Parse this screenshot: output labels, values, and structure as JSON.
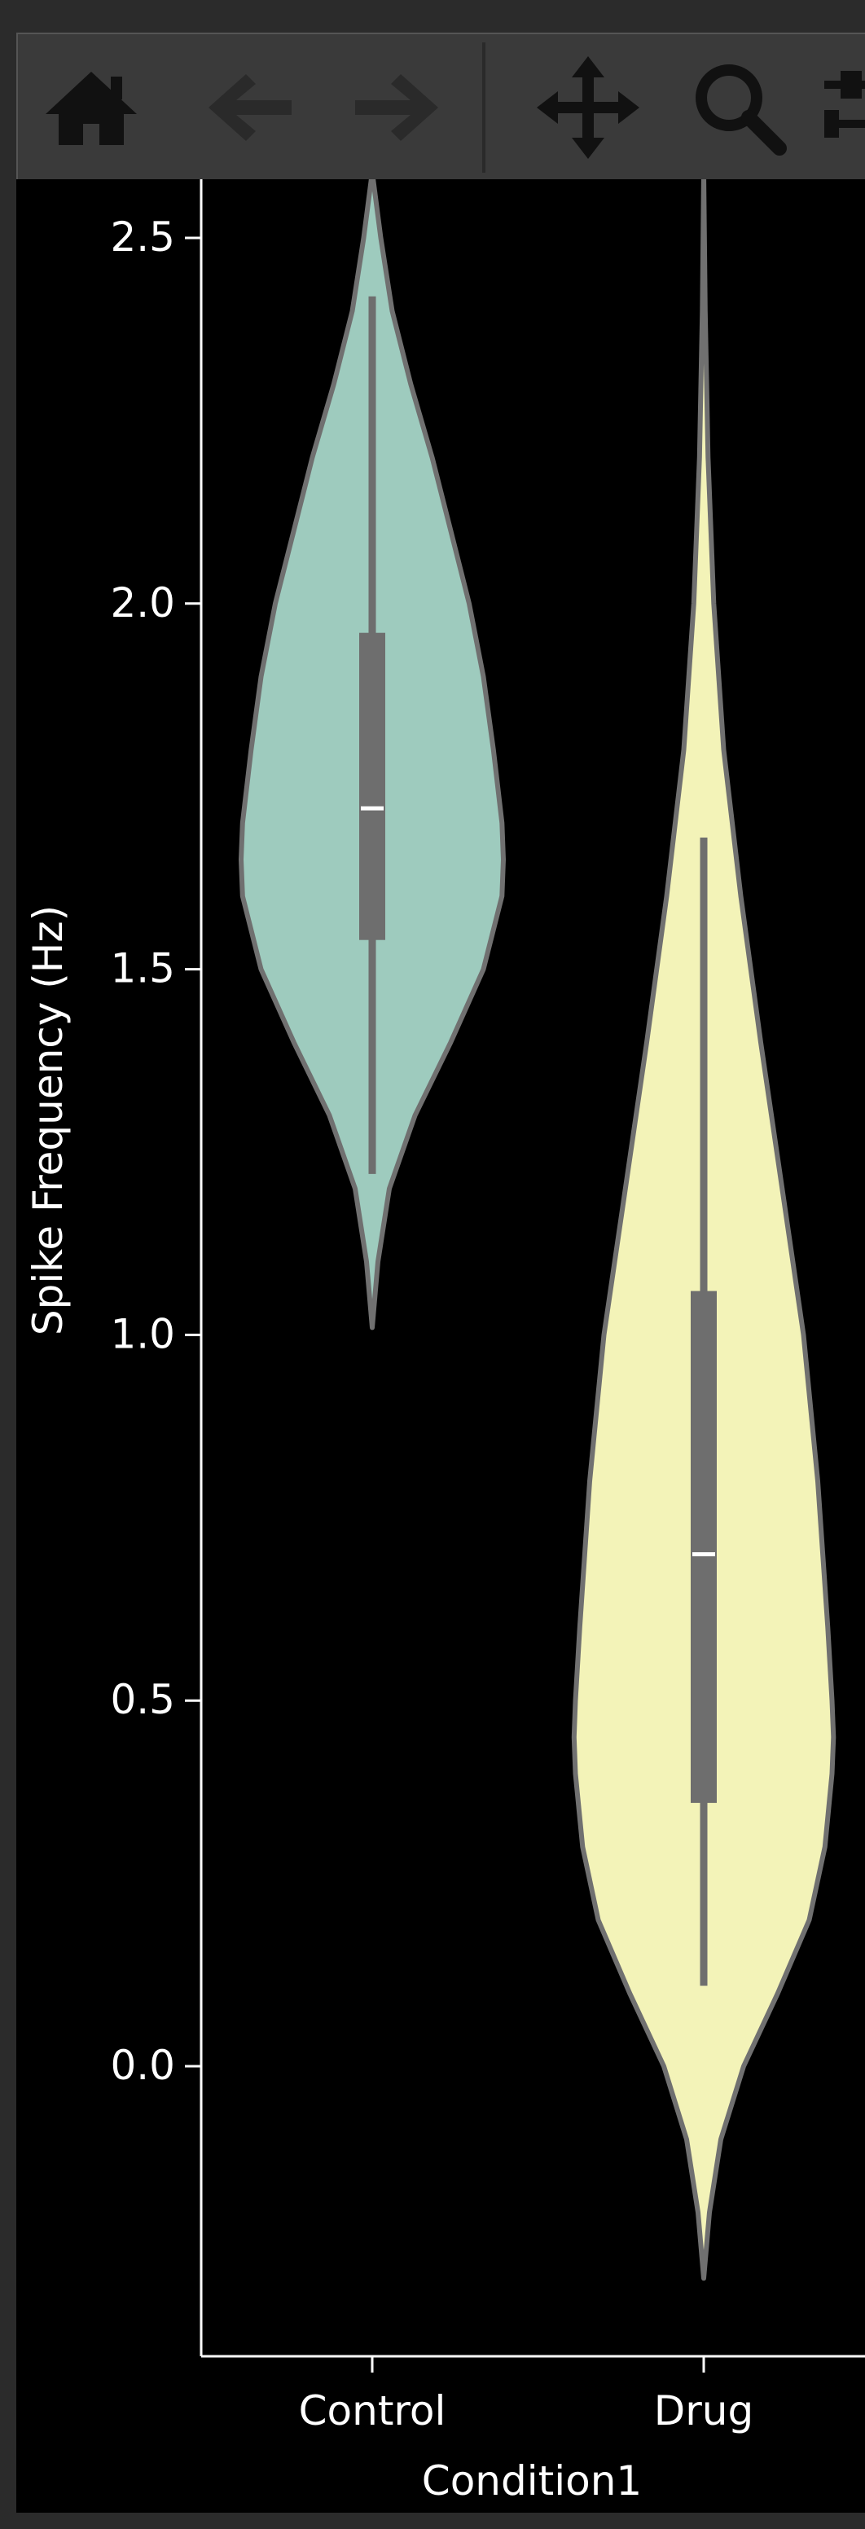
{
  "toolbar": {
    "buttons": [
      {
        "name": "home-icon",
        "label": "Home"
      },
      {
        "name": "back-arrow-icon",
        "label": "Back"
      },
      {
        "name": "forward-arrow-icon",
        "label": "Forward"
      },
      {
        "name": "pan-icon",
        "label": "Pan"
      },
      {
        "name": "zoom-icon",
        "label": "Zoom"
      },
      {
        "name": "configure-subplots-icon",
        "label": "Subplots"
      }
    ]
  },
  "chart_data": {
    "type": "violin",
    "title": "",
    "xlabel": "Condition1",
    "ylabel": "Spike Frequency (Hz)",
    "ylim": [
      -0.43,
      2.58
    ],
    "yticks": [
      0.0,
      0.5,
      1.0,
      1.5,
      2.0,
      2.5
    ],
    "ytick_labels": [
      "0.0",
      "0.5",
      "1.0",
      "1.5",
      "2.0",
      "2.5"
    ],
    "categories": [
      "Control",
      "Drug"
    ],
    "colors": {
      "Control": "#9ecbbe",
      "Drug": "#f3f3b8",
      "outline": "#707070",
      "box": "#6e6e6e",
      "median": "#ffffff"
    },
    "violins": [
      {
        "category": "Control",
        "min": 1.01,
        "max": 2.59,
        "whisker_low": 1.22,
        "whisker_high": 2.42,
        "q1": 1.54,
        "median": 1.72,
        "q3": 1.96,
        "density": [
          [
            1.01,
            0.0
          ],
          [
            1.1,
            0.04
          ],
          [
            1.2,
            0.12
          ],
          [
            1.3,
            0.3
          ],
          [
            1.4,
            0.55
          ],
          [
            1.5,
            0.78
          ],
          [
            1.6,
            0.91
          ],
          [
            1.65,
            0.92
          ],
          [
            1.7,
            0.91
          ],
          [
            1.8,
            0.85
          ],
          [
            1.9,
            0.78
          ],
          [
            2.0,
            0.68
          ],
          [
            2.1,
            0.55
          ],
          [
            2.2,
            0.42
          ],
          [
            2.3,
            0.27
          ],
          [
            2.4,
            0.14
          ],
          [
            2.5,
            0.06
          ],
          [
            2.59,
            0.0
          ]
        ]
      },
      {
        "category": "Drug",
        "min": -0.29,
        "max": 2.59,
        "whisker_low": 0.11,
        "whisker_high": 1.68,
        "q1": 0.36,
        "median": 0.7,
        "q3": 1.06,
        "density": [
          [
            -0.29,
            0.0
          ],
          [
            -0.2,
            0.04
          ],
          [
            -0.1,
            0.12
          ],
          [
            0.0,
            0.28
          ],
          [
            0.1,
            0.52
          ],
          [
            0.2,
            0.74
          ],
          [
            0.3,
            0.85
          ],
          [
            0.4,
            0.9
          ],
          [
            0.45,
            0.91
          ],
          [
            0.5,
            0.9
          ],
          [
            0.6,
            0.87
          ],
          [
            0.8,
            0.8
          ],
          [
            1.0,
            0.7
          ],
          [
            1.2,
            0.55
          ],
          [
            1.4,
            0.4
          ],
          [
            1.6,
            0.26
          ],
          [
            1.8,
            0.14
          ],
          [
            2.0,
            0.07
          ],
          [
            2.2,
            0.03
          ],
          [
            2.4,
            0.01
          ],
          [
            2.59,
            0.0
          ]
        ]
      }
    ]
  }
}
